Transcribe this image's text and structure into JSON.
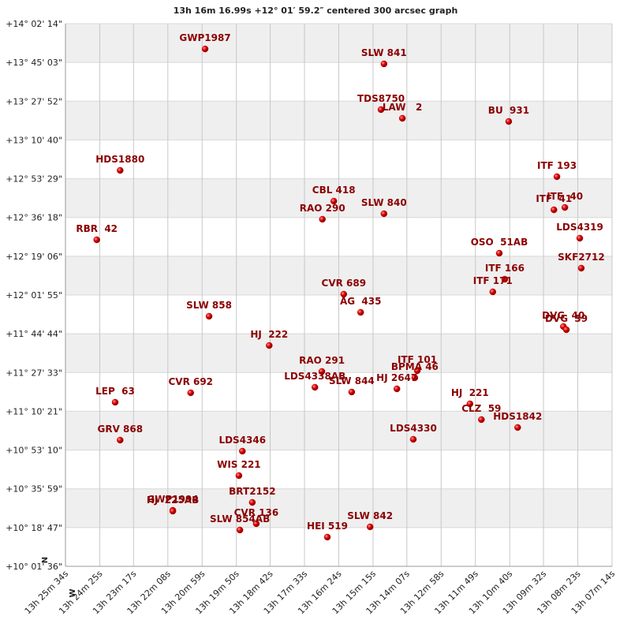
{
  "chart_data": {
    "type": "scatter",
    "title": "13h 16m 16.99s +12° 01′ 59.2″ centered 300 arcsec graph",
    "xlim": [
      48334,
      47234
    ],
    "xticks": [
      {
        "value": 48334,
        "label": "13h 25m 34s"
      },
      {
        "value": 48265,
        "label": "13h 24m 25s"
      },
      {
        "value": 48197,
        "label": "13h 23m 17s"
      },
      {
        "value": 48128,
        "label": "13h 22m 08s"
      },
      {
        "value": 48059,
        "label": "13h 20m 59s"
      },
      {
        "value": 47990,
        "label": "13h 19m 50s"
      },
      {
        "value": 47922,
        "label": "13h 18m 42s"
      },
      {
        "value": 47853,
        "label": "13h 17m 33s"
      },
      {
        "value": 47784,
        "label": "13h 16m 24s"
      },
      {
        "value": 47715,
        "label": "13h 15m 15s"
      },
      {
        "value": 47647,
        "label": "13h 14m 07s"
      },
      {
        "value": 47578,
        "label": "13h 12m 58s"
      },
      {
        "value": 47509,
        "label": "13h 11m 49s"
      },
      {
        "value": 47440,
        "label": "13h 10m 40s"
      },
      {
        "value": 47372,
        "label": "13h 09m 32s"
      },
      {
        "value": 47303,
        "label": "13h 08m 23s"
      },
      {
        "value": 47234,
        "label": "13h 07m 14s"
      }
    ],
    "ylim": [
      36096,
      50534
    ],
    "yticks": [
      {
        "value": 50534,
        "label": "+14° 02' 14\""
      },
      {
        "value": 49503,
        "label": "+13° 45' 03\""
      },
      {
        "value": 48472,
        "label": "+13° 27' 52\""
      },
      {
        "value": 47440,
        "label": "+13° 10' 40\""
      },
      {
        "value": 46409,
        "label": "+12° 53' 29\""
      },
      {
        "value": 45378,
        "label": "+12° 36' 18\""
      },
      {
        "value": 44346,
        "label": "+12° 19' 06\""
      },
      {
        "value": 43315,
        "label": "+12° 01' 55\""
      },
      {
        "value": 42284,
        "label": "+11° 44' 44\""
      },
      {
        "value": 41253,
        "label": "+11° 27' 33\""
      },
      {
        "value": 40221,
        "label": "+11° 10' 21\""
      },
      {
        "value": 39190,
        "label": "+10° 53' 10\""
      },
      {
        "value": 38159,
        "label": "+10° 35' 59\""
      },
      {
        "value": 37127,
        "label": "+10° 18' 47\""
      },
      {
        "value": 36096,
        "label": "+10° 01' 36\""
      }
    ],
    "grid": true,
    "color": "#cc0000",
    "label_color": "#8b0000",
    "compass": {
      "north": "N",
      "west": "W"
    },
    "labels": [
      "GWP1987",
      "SLW 841",
      "TDS8750",
      "LAW   2",
      "BU  931",
      "HDS1880",
      "ITF 193",
      "CBL 418",
      "RAO 290",
      "SLW 840",
      "ITF  41",
      "ITF  40",
      "RBR  42",
      "LDS4319",
      "OSO  51AB",
      "SKF2712",
      "ITF 166",
      "ITF 171",
      "CVR 689",
      "AG  435",
      "SLW 858",
      "DVG  40",
      "DVG  39",
      "HJ  222",
      "RAO 291",
      "ITF 101",
      "BPMA 46",
      "LDS4338AB",
      "SLW 844",
      "HJ 2647",
      "CVR 692",
      "LEP  63",
      "HJ  221",
      "CLZ  59",
      "HDS1842",
      "LDS4330",
      "GRV 868",
      "LDS4346",
      "WIS 221",
      "BRT2152",
      "GWP1994",
      "HJ  225AB",
      "CVR 136",
      "SLW 854AB",
      "HEI 519",
      "SLW 842"
    ],
    "x": [
      48053,
      47693,
      47699,
      47656,
      47442,
      48224,
      47345,
      47794,
      47817,
      47693,
      47351,
      47329,
      48271,
      47299,
      47461,
      47296,
      47450,
      47474,
      47774,
      47740,
      48045,
      47332,
      47326,
      47924,
      47818,
      47626,
      47631,
      47832,
      47758,
      47667,
      48082,
      48234,
      47520,
      47497,
      47424,
      47634,
      48224,
      47978,
      47985,
      47958,
      48118,
      48118,
      47950,
      47983,
      47807,
      47721
    ],
    "y": [
      49862,
      49464,
      48247,
      48016,
      47932,
      46631,
      46463,
      45812,
      45330,
      45477,
      45582,
      45644,
      44784,
      44826,
      44427,
      44029,
      43735,
      43399,
      43336,
      42853,
      42749,
      42476,
      42392,
      41972,
      41280,
      41301,
      41112,
      40860,
      40734,
      40818,
      40713,
      40461,
      40419,
      40000,
      39790,
      39475,
      39454,
      39160,
      38510,
      37796,
      37586,
      37565,
      37230,
      37062,
      36873,
      37146
    ]
  }
}
